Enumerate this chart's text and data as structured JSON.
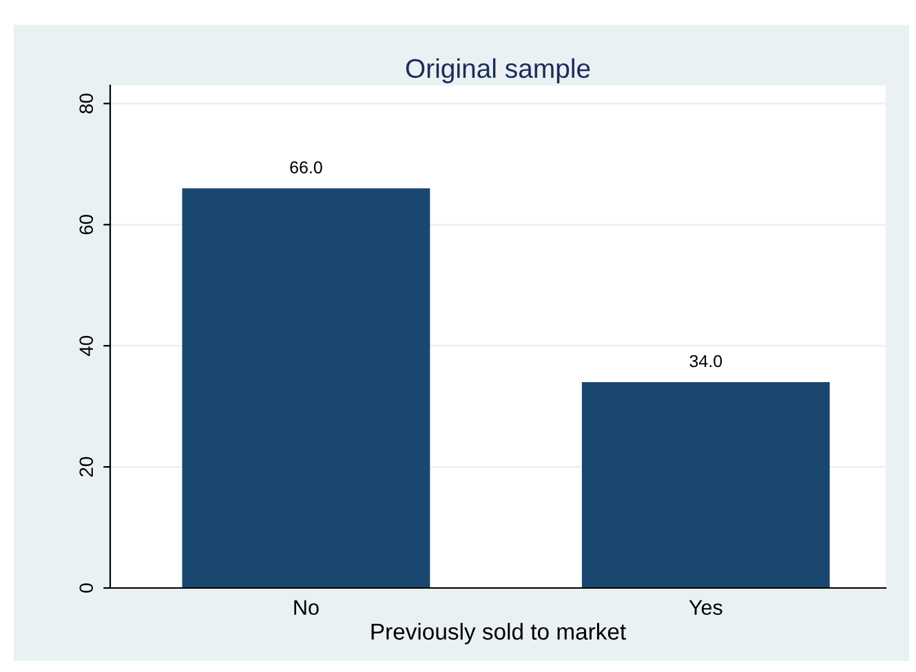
{
  "chart_data": {
    "type": "bar",
    "title": "Original sample",
    "xlabel": "Previously sold to market",
    "categories": [
      "No",
      "Yes"
    ],
    "values": [
      66.0,
      34.0
    ],
    "color": "#1a476f",
    "ylim": [
      0,
      83
    ],
    "yticks": [
      0,
      20,
      40,
      60,
      80
    ],
    "grid": "y",
    "value_labels": [
      "66.0",
      "34.0"
    ]
  }
}
